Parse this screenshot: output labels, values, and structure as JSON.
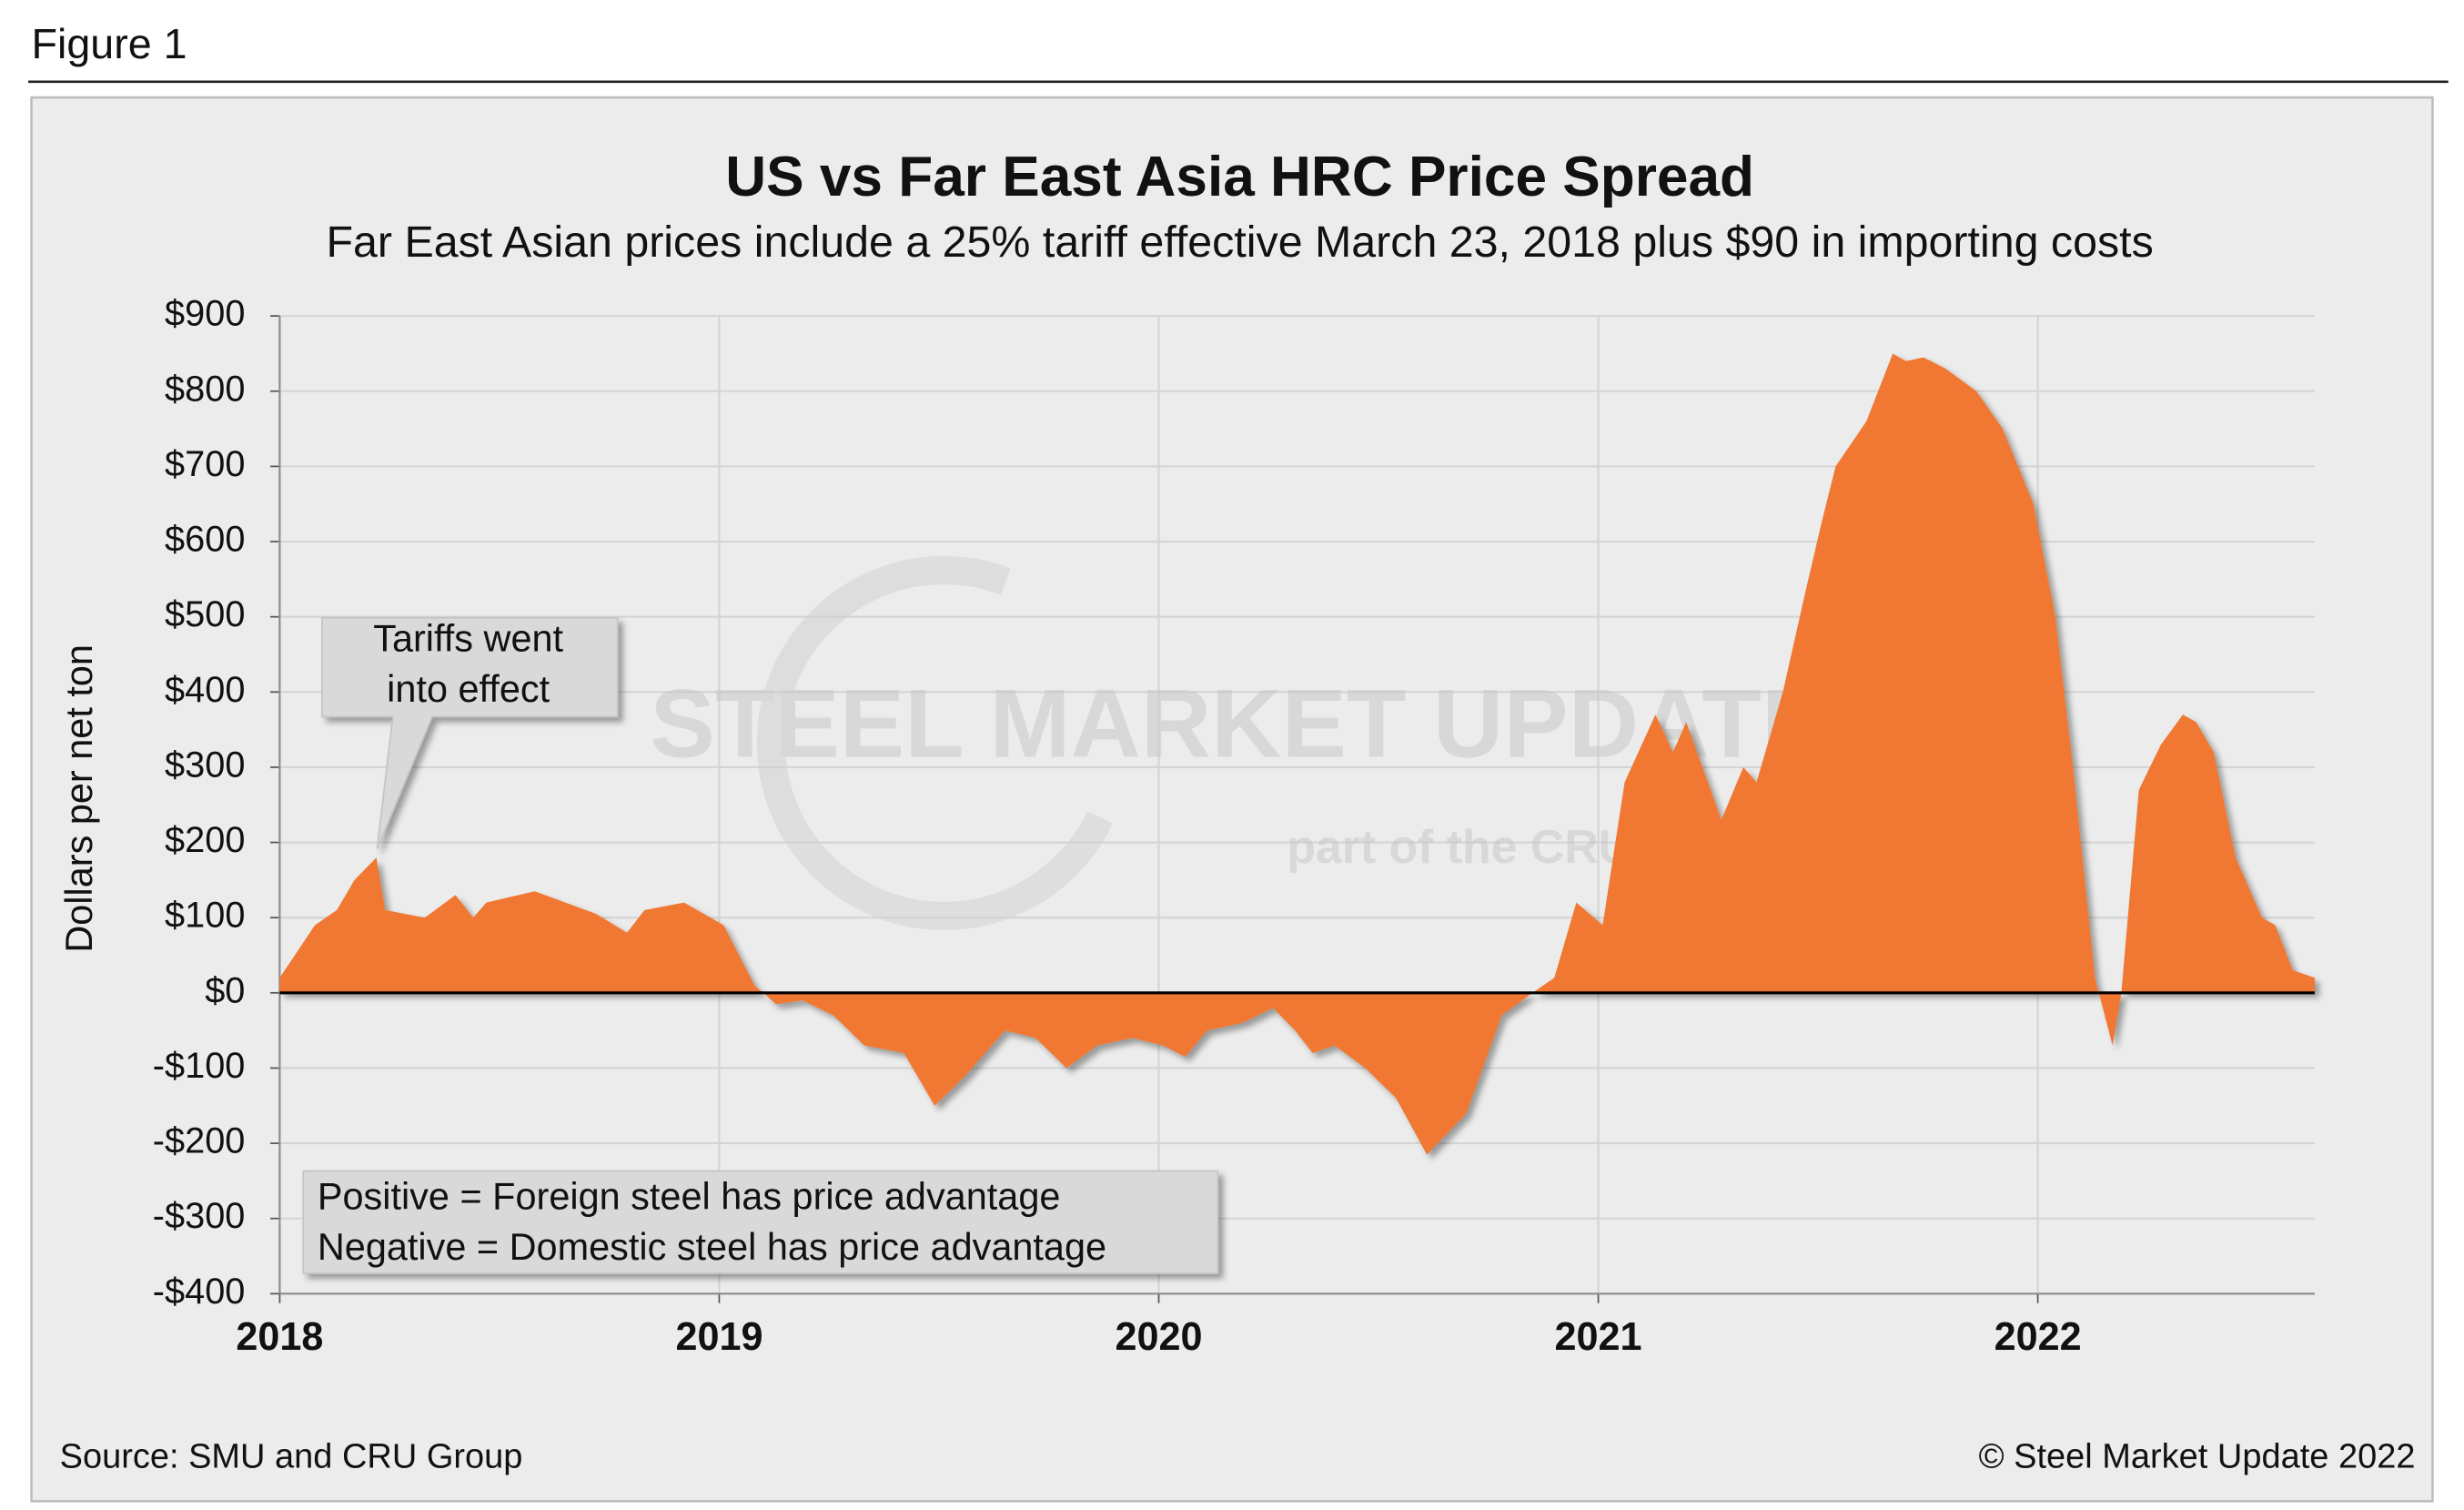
{
  "figure_label": "Figure 1",
  "chart_data": {
    "type": "area",
    "title": "US vs Far East Asia HRC Price Spread",
    "subtitle": "Far East Asian prices include a 25% tariff effective March 23, 2018 plus $90 in importing costs",
    "y_label": "Dollars per net ton",
    "color": "#f07830",
    "grid": true,
    "x": [
      2018.0,
      2018.08,
      2018.13,
      2018.17,
      2018.22,
      2018.24,
      2018.33,
      2018.4,
      2018.44,
      2018.47,
      2018.58,
      2018.65,
      2018.72,
      2018.79,
      2018.83,
      2018.92,
      2019.01,
      2019.08,
      2019.13,
      2019.19,
      2019.26,
      2019.33,
      2019.42,
      2019.49,
      2019.56,
      2019.65,
      2019.72,
      2019.79,
      2019.86,
      2019.94,
      2020.01,
      2020.06,
      2020.11,
      2020.19,
      2020.26,
      2020.31,
      2020.35,
      2020.4,
      2020.47,
      2020.54,
      2020.61,
      2020.7,
      2020.78,
      2020.85,
      2020.9,
      2020.95,
      2021.01,
      2021.06,
      2021.13,
      2021.17,
      2021.2,
      2021.28,
      2021.33,
      2021.36,
      2021.42,
      2021.47,
      2021.51,
      2021.54,
      2021.61,
      2021.67,
      2021.7,
      2021.74,
      2021.79,
      2021.86,
      2021.92,
      2021.99,
      2022.04,
      2022.08,
      2022.13,
      2022.17,
      2022.19,
      2022.23,
      2022.28,
      2022.33,
      2022.36,
      2022.4,
      2022.45,
      2022.51,
      2022.54,
      2022.58,
      2022.63
    ],
    "values": [
      20,
      90,
      110,
      150,
      180,
      110,
      100,
      130,
      100,
      120,
      135,
      120,
      105,
      80,
      110,
      120,
      90,
      10,
      -15,
      -10,
      -30,
      -70,
      -80,
      -150,
      -110,
      -50,
      -60,
      -100,
      -70,
      -60,
      -70,
      -85,
      -50,
      -40,
      -20,
      -50,
      -80,
      -70,
      -100,
      -140,
      -215,
      -160,
      -30,
      0,
      20,
      120,
      90,
      280,
      370,
      320,
      360,
      230,
      300,
      280,
      400,
      530,
      630,
      700,
      760,
      850,
      840,
      845,
      830,
      800,
      750,
      650,
      500,
      300,
      20,
      -70,
      0,
      270,
      330,
      370,
      360,
      320,
      180,
      100,
      90,
      30,
      20
    ],
    "xlim": [
      2018,
      2022.63
    ],
    "xticks": [
      2018,
      2019,
      2020,
      2021,
      2022
    ],
    "ylim": [
      -400,
      900
    ],
    "yticks": [
      {
        "value": -400,
        "label": "-$400"
      },
      {
        "value": -300,
        "label": "-$300"
      },
      {
        "value": -200,
        "label": "-$200"
      },
      {
        "value": -100,
        "label": "-$100"
      },
      {
        "value": 0,
        "label": "$0"
      },
      {
        "value": 100,
        "label": "$100"
      },
      {
        "value": 200,
        "label": "$200"
      },
      {
        "value": 300,
        "label": "$300"
      },
      {
        "value": 400,
        "label": "$400"
      },
      {
        "value": 500,
        "label": "$500"
      },
      {
        "value": 600,
        "label": "$600"
      },
      {
        "value": 700,
        "label": "$700"
      },
      {
        "value": 800,
        "label": "$800"
      },
      {
        "value": 900,
        "label": "$900"
      }
    ],
    "callout": [
      "Tariffs went",
      "into effect"
    ],
    "legend_note": [
      "Positive = Foreign steel has price advantage",
      "Negative = Domestic steel has price advantage"
    ],
    "watermark": {
      "logo": "STEEL MARKET UPDATE",
      "tagline": "part of the CRU Group"
    },
    "source": "Source: SMU and CRU Group",
    "copyright": "© Steel Market Update 2022"
  }
}
